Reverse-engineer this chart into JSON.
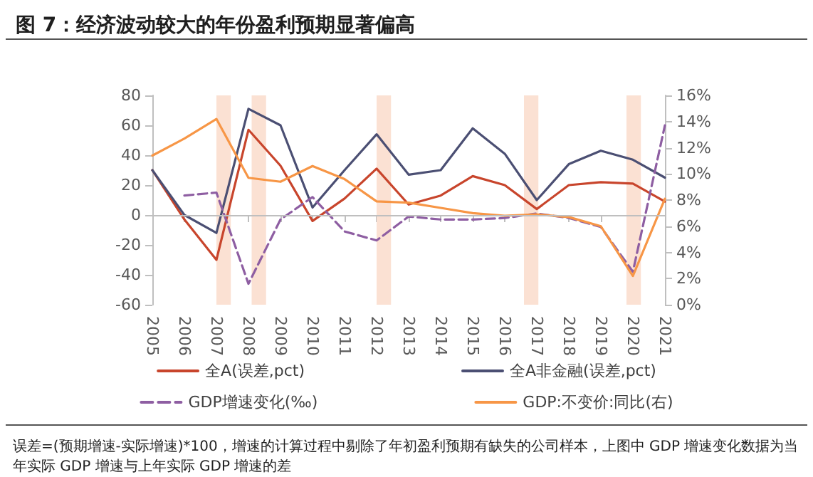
{
  "chart_data": {
    "type": "line",
    "title": "图 7：经济波动较大的年份盈利预期显著偏高",
    "annotations": [
      "误差=(预期增速-实际增速)*100，增速的计算过程中剔除了年初盈利预期有缺失的公司样本，上图中 GDP 增速变化数据为当年实际 GDP 增速与上年实际 GDP 增速的差"
    ],
    "x": [
      2005,
      2006,
      2007,
      2008,
      2009,
      2010,
      2011,
      2012,
      2013,
      2014,
      2015,
      2016,
      2017,
      2018,
      2019,
      2020,
      2021
    ],
    "xlim": [
      2005,
      2021
    ],
    "xticks": [
      2005,
      2006,
      2007,
      2008,
      2009,
      2010,
      2011,
      2012,
      2013,
      2014,
      2015,
      2016,
      2017,
      2018,
      2019,
      2020,
      2021
    ],
    "ylim": [
      -60,
      80
    ],
    "yticks": [
      -60,
      -40,
      -20,
      0,
      20,
      40,
      60,
      80
    ],
    "y2lim": [
      0,
      16
    ],
    "y2ticks": [
      {
        "value": 0,
        "label": "0%"
      },
      {
        "value": 2,
        "label": "2%"
      },
      {
        "value": 4,
        "label": "4%"
      },
      {
        "value": 6,
        "label": "6%"
      },
      {
        "value": 8,
        "label": "8%"
      },
      {
        "value": 10,
        "label": "10%"
      },
      {
        "value": 12,
        "label": "12%"
      },
      {
        "value": 14,
        "label": "14%"
      },
      {
        "value": 16,
        "label": "16%"
      }
    ],
    "series": [
      {
        "name": "全A(误差,pct)",
        "color": "#c8452c",
        "values": [
          30,
          -3,
          -30,
          57,
          33,
          -4,
          11,
          31,
          7,
          13,
          26,
          20,
          4,
          20,
          22,
          21,
          9
        ]
      },
      {
        "name": "全A非金融(误差,pct)",
        "color": "#4b4f73",
        "values": [
          30,
          0,
          -12,
          71,
          60,
          5,
          30,
          54,
          27,
          30,
          58,
          41,
          10,
          34,
          43,
          37,
          25
        ]
      },
      {
        "name": "GDP增速变化(‰)",
        "color": "#8e5ea2",
        "line_style": "dashed",
        "values": [
          null,
          13,
          15,
          -46,
          -3,
          12,
          -11,
          -17,
          -1,
          -3,
          -3,
          -2,
          1,
          -2,
          -8,
          -38,
          60
        ]
      },
      {
        "name": "GDP:不变价:同比(右)",
        "color": "#f79646",
        "axis": "y2",
        "values": [
          11.4,
          12.7,
          14.2,
          9.7,
          9.4,
          10.6,
          9.6,
          7.9,
          7.8,
          7.4,
          7.0,
          6.8,
          6.9,
          6.7,
          6.0,
          2.2,
          8.1
        ]
      }
    ],
    "bands": [
      {
        "axis": "x",
        "from": 2007,
        "to": 2007.45,
        "color": "#fbe1d3"
      },
      {
        "axis": "x",
        "from": 2008.1,
        "to": 2008.55,
        "color": "#fbe1d3"
      },
      {
        "axis": "x",
        "from": 2012,
        "to": 2012.45,
        "color": "#fbe1d3"
      },
      {
        "axis": "x",
        "from": 2016.6,
        "to": 2017.05,
        "color": "#fbe1d3"
      },
      {
        "axis": "x",
        "from": 2019.8,
        "to": 2020.25,
        "color": "#fbe1d3"
      }
    ],
    "ref_lines": [
      {
        "axis": "y",
        "value": 0,
        "color": "#bfbfbf"
      }
    ],
    "grid": false,
    "legend": "bottom",
    "line_style": "solid",
    "marker": "none"
  }
}
